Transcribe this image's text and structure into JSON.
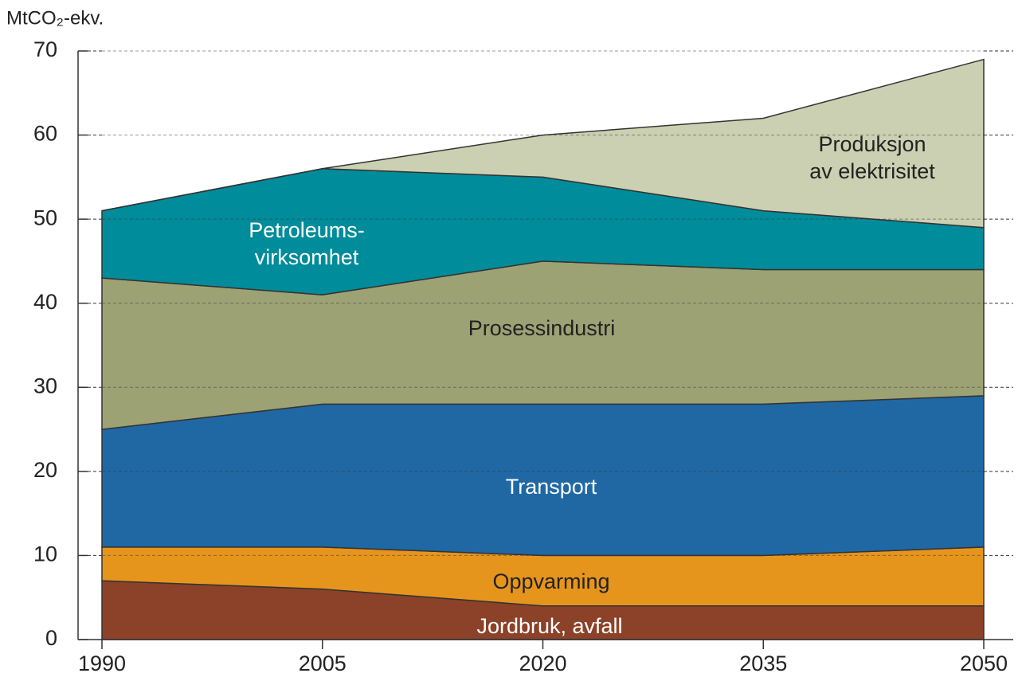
{
  "chart_data": {
    "type": "stacked_area",
    "ylabel": "MtCO₂-ekv.",
    "x": [
      1990,
      2005,
      2020,
      2035,
      2050
    ],
    "xlim": [
      1990,
      2050
    ],
    "xticks": [
      1990,
      2005,
      2020,
      2035,
      2050
    ],
    "ylim": [
      0,
      70
    ],
    "yticks": [
      0,
      10,
      20,
      30,
      40,
      50,
      60,
      70
    ],
    "grid": true,
    "series": [
      {
        "name": [
          "Jordbruk, avfall"
        ],
        "color": "#8b4229",
        "values": [
          7,
          6,
          4,
          4,
          4
        ]
      },
      {
        "name": [
          "Oppvarming"
        ],
        "color": "#e6951c",
        "values": [
          4,
          5,
          6,
          6,
          7
        ]
      },
      {
        "name": [
          "Transport"
        ],
        "color": "#1f68a4",
        "values": [
          14,
          17,
          18,
          18,
          18
        ]
      },
      {
        "name": [
          "Prosessindustri"
        ],
        "color": "#9ca274",
        "values": [
          18,
          13,
          17,
          16,
          15
        ]
      },
      {
        "name": [
          "Petroleums-",
          "virksomhet"
        ],
        "color": "#008c9a",
        "values": [
          8,
          15,
          10,
          7,
          5
        ]
      },
      {
        "name": [
          "Produksjon",
          "av elektrisitet"
        ],
        "color": "#ccd0b2",
        "values": [
          0,
          0,
          5,
          11,
          20
        ]
      }
    ]
  }
}
